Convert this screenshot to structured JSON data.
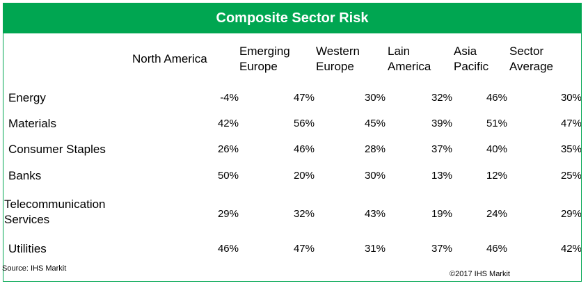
{
  "chart_data": {
    "type": "table",
    "title": "Composite Sector Risk",
    "columns": [
      "North America",
      "Emerging\nEurope",
      "Western\nEurope",
      "Lain\nAmerica",
      "Asia\nPacific",
      "Sector\nAverage"
    ],
    "rows": [
      {
        "label": "Energy",
        "values": [
          "-4%",
          "47%",
          "30%",
          "32%",
          "46%",
          "30%"
        ]
      },
      {
        "label": "Materials",
        "values": [
          "42%",
          "56%",
          "45%",
          "39%",
          "51%",
          "47%"
        ]
      },
      {
        "label": "Consumer Staples",
        "values": [
          "26%",
          "46%",
          "28%",
          "37%",
          "40%",
          "35%"
        ]
      },
      {
        "label": "Banks",
        "values": [
          "50%",
          "20%",
          "30%",
          "13%",
          "12%",
          "25%"
        ]
      },
      {
        "label": " Telecommunication\nServices",
        "values": [
          "29%",
          "32%",
          "43%",
          "19%",
          "24%",
          "29%"
        ]
      },
      {
        "label": "Utilities",
        "values": [
          "46%",
          "47%",
          "31%",
          "37%",
          "46%",
          "42%"
        ]
      }
    ]
  },
  "footer": {
    "source": "Source: IHS Markit",
    "copyright": "©2017 IHS Markit"
  },
  "colors": {
    "accent": "#00a651"
  }
}
